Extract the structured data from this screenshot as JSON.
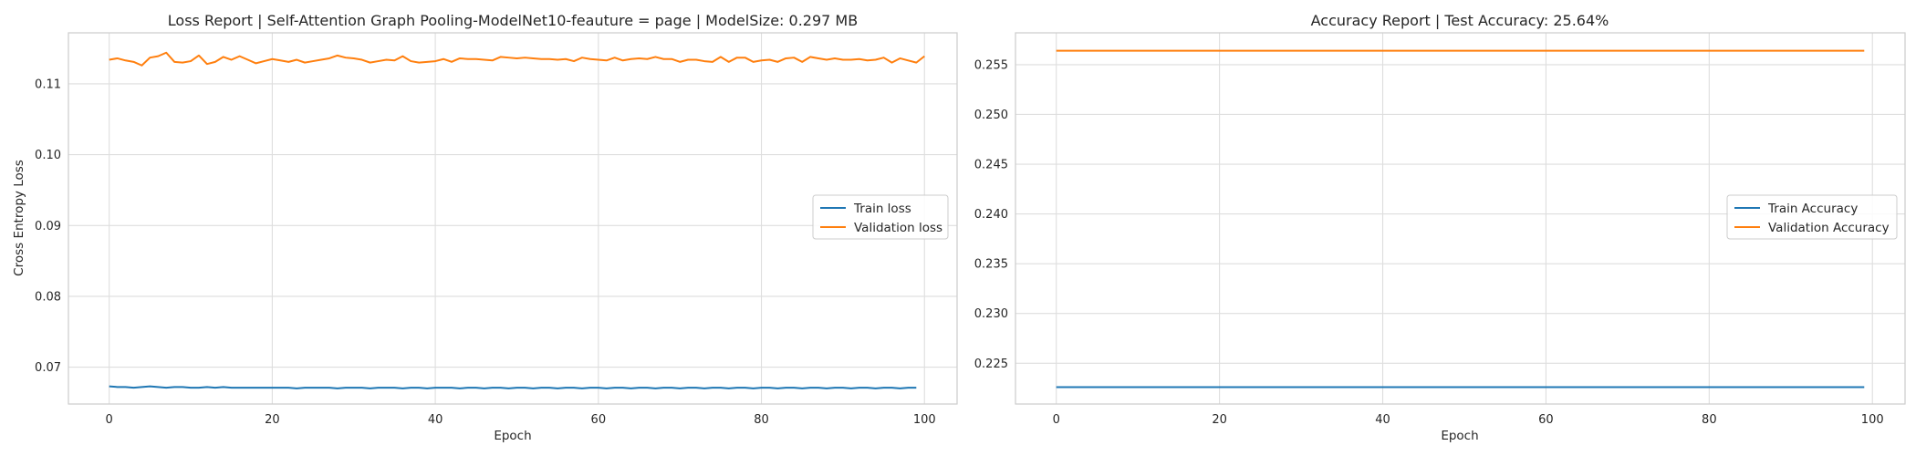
{
  "colors": {
    "train": "#1f77b4",
    "validation": "#ff7f0e",
    "grid": "#dedede",
    "spine": "#cccccc",
    "text": "#262626"
  },
  "chart_data": [
    {
      "type": "line",
      "title": "Loss Report | Self-Attention Graph Pooling-ModelNet10-feauture = page | ModelSize: 0.297 MB",
      "xlabel": "Epoch",
      "ylabel": "Cross Entropy Loss",
      "xlim": [
        -5,
        104
      ],
      "ylim": [
        0.0648,
        0.1172
      ],
      "xticks": [
        0,
        20,
        40,
        60,
        80,
        100
      ],
      "yticks": [
        0.07,
        0.08,
        0.09,
        0.1,
        0.11
      ],
      "ytick_labels": [
        "0.07",
        "0.08",
        "0.09",
        "0.10",
        "0.11"
      ],
      "grid": true,
      "legend_placement": "center-right",
      "series": [
        {
          "name": "Train loss",
          "color": "#1f77b4",
          "values": [
            0.0673,
            0.0672,
            0.0672,
            0.0671,
            0.0672,
            0.0673,
            0.0672,
            0.0671,
            0.0672,
            0.0672,
            0.0671,
            0.0671,
            0.0672,
            0.0671,
            0.0672,
            0.0671,
            0.0671,
            0.0671,
            0.0671,
            0.0671,
            0.0671,
            0.0671,
            0.0671,
            0.067,
            0.0671,
            0.0671,
            0.0671,
            0.0671,
            0.067,
            0.0671,
            0.0671,
            0.0671,
            0.067,
            0.0671,
            0.0671,
            0.0671,
            0.067,
            0.0671,
            0.0671,
            0.067,
            0.0671,
            0.0671,
            0.0671,
            0.067,
            0.0671,
            0.0671,
            0.067,
            0.0671,
            0.0671,
            0.067,
            0.0671,
            0.0671,
            0.067,
            0.0671,
            0.0671,
            0.067,
            0.0671,
            0.0671,
            0.067,
            0.0671,
            0.0671,
            0.067,
            0.0671,
            0.0671,
            0.067,
            0.0671,
            0.0671,
            0.067,
            0.0671,
            0.0671,
            0.067,
            0.0671,
            0.0671,
            0.067,
            0.0671,
            0.0671,
            0.067,
            0.0671,
            0.0671,
            0.067,
            0.0671,
            0.0671,
            0.067,
            0.0671,
            0.0671,
            0.067,
            0.0671,
            0.0671,
            0.067,
            0.0671,
            0.0671,
            0.067,
            0.0671,
            0.0671,
            0.067,
            0.0671,
            0.0671,
            0.067,
            0.0671,
            0.0671
          ]
        },
        {
          "name": "Validation loss",
          "color": "#ff7f0e",
          "values": [
            0.1134,
            0.1136,
            0.1133,
            0.1131,
            0.1126,
            0.1137,
            0.1139,
            0.1144,
            0.1131,
            0.113,
            0.1132,
            0.114,
            0.1128,
            0.1131,
            0.1138,
            0.1134,
            0.1139,
            0.1134,
            0.1129,
            0.1132,
            0.1135,
            0.1133,
            0.1131,
            0.1134,
            0.113,
            0.1132,
            0.1134,
            0.1136,
            0.114,
            0.1137,
            0.1136,
            0.1134,
            0.113,
            0.1132,
            0.1134,
            0.1133,
            0.1139,
            0.1132,
            0.113,
            0.1131,
            0.1132,
            0.1135,
            0.1131,
            0.1136,
            0.1135,
            0.1135,
            0.1134,
            0.1133,
            0.1138,
            0.1137,
            0.1136,
            0.1137,
            0.1136,
            0.1135,
            0.1135,
            0.1134,
            0.1135,
            0.1132,
            0.1137,
            0.1135,
            0.1134,
            0.1133,
            0.1137,
            0.1133,
            0.1135,
            0.1136,
            0.1135,
            0.1138,
            0.1135,
            0.1135,
            0.1131,
            0.1134,
            0.1134,
            0.1132,
            0.1131,
            0.1138,
            0.1131,
            0.1137,
            0.1137,
            0.1131,
            0.1133,
            0.1134,
            0.1131,
            0.1136,
            0.1137,
            0.1131,
            0.1138,
            0.1136,
            0.1134,
            0.1136,
            0.1134,
            0.1134,
            0.1135,
            0.1133,
            0.1134,
            0.1137,
            0.113,
            0.1136,
            0.1133,
            0.113,
            0.1139
          ]
        }
      ]
    },
    {
      "type": "line",
      "title": "Accuracy Report | Test Accuracy: 25.64%",
      "xlabel": "Epoch",
      "ylabel": "",
      "xlim": [
        -5,
        104
      ],
      "ylim": [
        0.2209,
        0.2582
      ],
      "xticks": [
        0,
        20,
        40,
        60,
        80,
        100
      ],
      "yticks": [
        0.225,
        0.23,
        0.235,
        0.24,
        0.245,
        0.25,
        0.255
      ],
      "ytick_labels": [
        "0.225",
        "0.230",
        "0.235",
        "0.240",
        "0.245",
        "0.250",
        "0.255"
      ],
      "grid": true,
      "legend_placement": "center-right",
      "series": [
        {
          "name": "Train Accuracy",
          "color": "#1f77b4",
          "x": [
            0,
            99
          ],
          "values": [
            0.2226,
            0.2226
          ]
        },
        {
          "name": "Validation Accuracy",
          "color": "#ff7f0e",
          "x": [
            0,
            99
          ],
          "values": [
            0.2564,
            0.2564
          ]
        }
      ]
    }
  ]
}
